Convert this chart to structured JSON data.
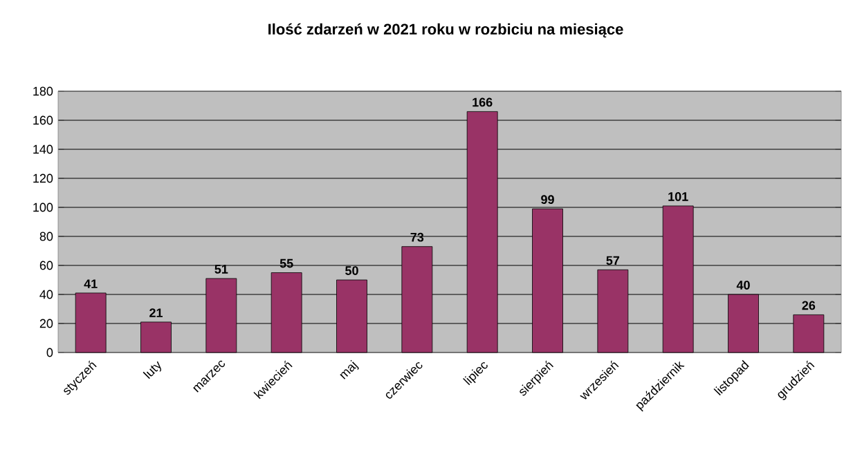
{
  "chart_data": {
    "type": "bar",
    "title": "Ilość zdarzeń w 2021 roku w rozbiciu na miesiące",
    "categories": [
      "styczeń",
      "luty",
      "marzec",
      "kwiecień",
      "maj",
      "czerwiec",
      "lipiec",
      "sierpień",
      "wrzesień",
      "październik",
      "listopad",
      "grudzień"
    ],
    "values": [
      41,
      21,
      51,
      55,
      50,
      73,
      166,
      99,
      57,
      101,
      40,
      26
    ],
    "color": "#993366",
    "ylim": [
      0,
      180
    ],
    "yticks": [
      0,
      20,
      40,
      60,
      80,
      100,
      120,
      140,
      160,
      180
    ],
    "grid": "y",
    "data_labels": true
  }
}
